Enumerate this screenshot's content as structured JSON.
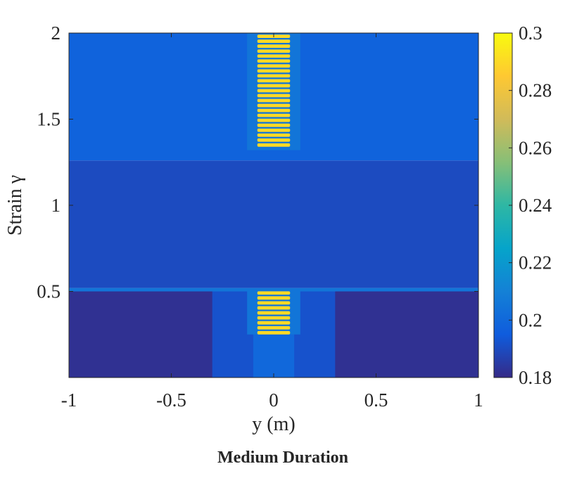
{
  "chart_data": {
    "type": "heatmap",
    "title": "Medium Duration",
    "xlabel": "y (m)",
    "ylabel": "Strain γ",
    "xlim": [
      -1,
      1
    ],
    "ylim": [
      0,
      2
    ],
    "x_ticks": [
      "-1",
      "-0.5",
      "0",
      "0.5",
      "1"
    ],
    "x_tick_values": [
      -1,
      -0.5,
      0,
      0.5,
      1
    ],
    "y_ticks": [
      "0.5",
      "1",
      "1.5",
      "2"
    ],
    "y_tick_values": [
      0.5,
      1,
      1.5,
      2
    ],
    "colormap": "parula",
    "colorbar": {
      "min": 0.18,
      "max": 0.3,
      "ticks": [
        "0.18",
        "0.2",
        "0.22",
        "0.24",
        "0.26",
        "0.28",
        "0.3"
      ],
      "tick_values": [
        0.18,
        0.2,
        0.22,
        0.24,
        0.26,
        0.28,
        0.3
      ]
    },
    "regions": [
      {
        "x": [
          -1,
          1
        ],
        "y": [
          0,
          0.5
        ],
        "value": 0.182
      },
      {
        "x": [
          -0.3,
          0.3
        ],
        "y": [
          0,
          0.5
        ],
        "value": 0.192
      },
      {
        "x": [
          -0.1,
          0.1
        ],
        "y": [
          0,
          0.5
        ],
        "value": 0.2
      },
      {
        "x": [
          -0.13,
          0.13
        ],
        "y": [
          0.25,
          0.5
        ],
        "value": 0.205
      },
      {
        "x": [
          -1,
          1
        ],
        "y": [
          0.5,
          0.52
        ],
        "value": 0.205
      },
      {
        "x": [
          -1,
          1
        ],
        "y": [
          0.52,
          1.26
        ],
        "value": 0.19
      },
      {
        "x": [
          -1,
          1
        ],
        "y": [
          1.26,
          2
        ],
        "value": 0.198
      },
      {
        "x": [
          -0.13,
          0.13
        ],
        "y": [
          1.32,
          2
        ],
        "value": 0.205
      }
    ],
    "bands": [
      {
        "x": [
          -0.08,
          0.08
        ],
        "y": [
          0.25,
          0.51
        ],
        "stripes": 9,
        "value": 0.29
      },
      {
        "x": [
          -0.08,
          0.08
        ],
        "y": [
          1.34,
          2
        ],
        "stripes": 23,
        "value": 0.29
      }
    ]
  }
}
